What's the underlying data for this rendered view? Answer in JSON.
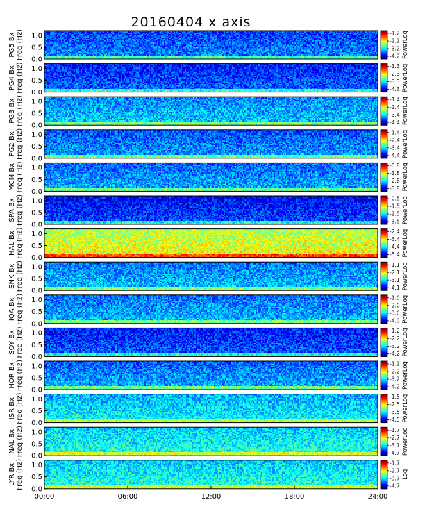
{
  "chart_data": {
    "type": "heatmap",
    "title": "20160404 x axis",
    "credit": "",
    "x_axis": {
      "range": [
        "00:00",
        "24:00"
      ],
      "ticks": [
        "00:00",
        "06:00",
        "12:00",
        "18:00",
        "24:00"
      ]
    },
    "y_ticks": [
      "0.0",
      "0.5",
      "1.0"
    ],
    "y_range": [
      0,
      1.2
    ],
    "colorbar_title": "PowerLog",
    "last_colorbar_title": "Log",
    "panels": [
      {
        "station": "PG5",
        "ylabel_top": "PG5 Bx",
        "ylabel_bottom": "Freq (Hz)",
        "colorbar_ticks": [
          "-1.2",
          "-2.2",
          "-3.2",
          "-4.2"
        ],
        "base_level": 0.18
      },
      {
        "station": "PG4",
        "ylabel_top": "PG4 Bx",
        "ylabel_bottom": "Freq (Hz)",
        "colorbar_ticks": [
          "-1.3",
          "-2.3",
          "-3.3",
          "-4.3"
        ],
        "base_level": 0.15
      },
      {
        "station": "PG3",
        "ylabel_top": "PG3 Bx",
        "ylabel_bottom": "Freq (Hz)",
        "colorbar_ticks": [
          "-1.4",
          "-2.4",
          "-3.4",
          "-4.4"
        ],
        "base_level": 0.25
      },
      {
        "station": "PG2",
        "ylabel_top": "PG2 Bx",
        "ylabel_bottom": "Freq (Hz)",
        "colorbar_ticks": [
          "-1.4",
          "-2.4",
          "-3.4",
          "-4.4"
        ],
        "base_level": 0.2
      },
      {
        "station": "MCM",
        "ylabel_top": "MCM Bx",
        "ylabel_bottom": "Freq (Hz)",
        "colorbar_ticks": [
          "-0.8",
          "-1.8",
          "-2.8",
          "-3.8"
        ],
        "base_level": 0.22
      },
      {
        "station": "SPA",
        "ylabel_top": "SPA Bx",
        "ylabel_bottom": "Freq (Hz)",
        "colorbar_ticks": [
          "-0.5",
          "-1.5",
          "-2.5",
          "-3.5"
        ],
        "base_level": 0.12
      },
      {
        "station": "HAL",
        "ylabel_top": "HAL Bx",
        "ylabel_bottom": "Freq (Hz)",
        "colorbar_ticks": [
          "-2.4",
          "-3.4",
          "-4.4",
          "-5.4"
        ],
        "base_level": 0.55
      },
      {
        "station": "SNK",
        "ylabel_top": "SNK Bx",
        "ylabel_bottom": "Freq (Hz)",
        "colorbar_ticks": [
          "-1.1",
          "-2.1",
          "-3.1",
          "-4.1"
        ],
        "base_level": 0.24
      },
      {
        "station": "IQA",
        "ylabel_top": "IQA Bx",
        "ylabel_bottom": "Freq (Hz)",
        "colorbar_ticks": [
          "-1.0",
          "-2.0",
          "-3.0",
          "-4.0"
        ],
        "base_level": 0.23
      },
      {
        "station": "SOY",
        "ylabel_top": "SOY Bx",
        "ylabel_bottom": "Freq (Hz)",
        "colorbar_ticks": [
          "-1.2",
          "-2.2",
          "-3.2",
          "-4.2"
        ],
        "base_level": 0.14
      },
      {
        "station": "HOR",
        "ylabel_top": "HOR Bx",
        "ylabel_bottom": "Freq (Hz)",
        "colorbar_ticks": [
          "-1.2",
          "-2.2",
          "-3.2",
          "-4.2"
        ],
        "base_level": 0.22
      },
      {
        "station": "ISR",
        "ylabel_top": "ISR Bx",
        "ylabel_bottom": "Freq (Hz)",
        "colorbar_ticks": [
          "-1.5",
          "-2.5",
          "-3.5",
          "-4.5"
        ],
        "base_level": 0.3
      },
      {
        "station": "NAL",
        "ylabel_top": "NAL Bx",
        "ylabel_bottom": "Freq (Hz)",
        "colorbar_ticks": [
          "-1.7",
          "-2.7",
          "-3.7",
          "-4.7"
        ],
        "base_level": 0.33
      },
      {
        "station": "LYR",
        "ylabel_top": "LYR Bx",
        "ylabel_bottom": "Freq (Hz)",
        "colorbar_ticks": [
          "-1.7",
          "-2.7",
          "-3.7",
          "-4.7"
        ],
        "base_level": 0.33
      }
    ]
  }
}
